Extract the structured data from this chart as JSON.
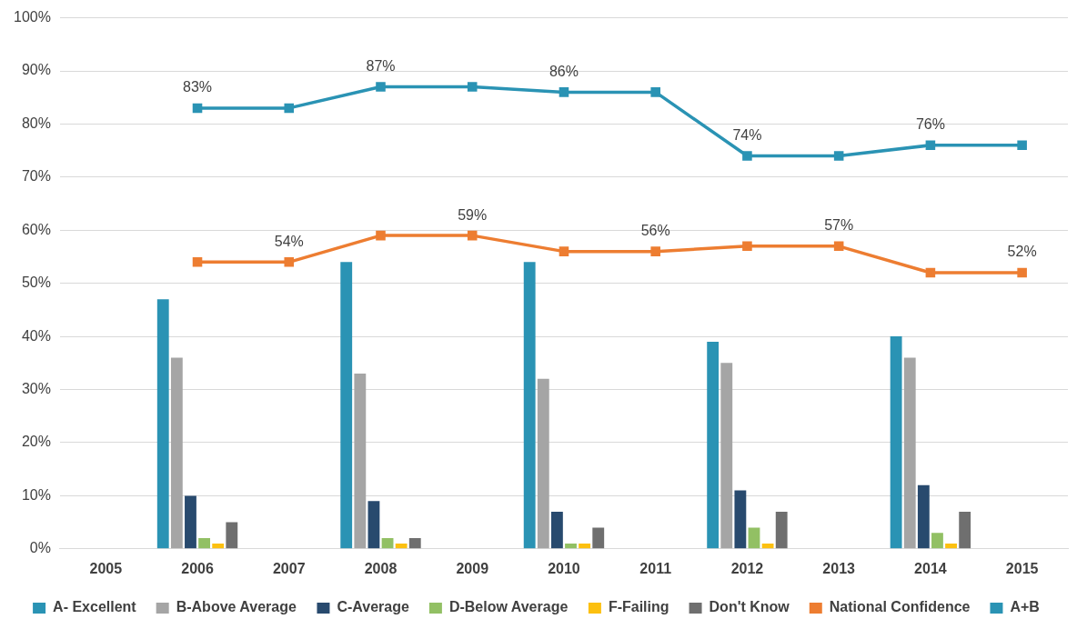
{
  "chart_data": {
    "type": "bar",
    "categories": [
      "2005",
      "2006",
      "2007",
      "2008",
      "2009",
      "2010",
      "2011",
      "2012",
      "2013",
      "2014",
      "2015"
    ],
    "series": [
      {
        "name": "A- Excellent",
        "color": "#2a93b4",
        "values": [
          null,
          47,
          null,
          54,
          null,
          54,
          null,
          39,
          null,
          40,
          null
        ]
      },
      {
        "name": "B-Above Average",
        "color": "#a5a5a5",
        "values": [
          null,
          36,
          null,
          33,
          null,
          32,
          null,
          35,
          null,
          36,
          null
        ]
      },
      {
        "name": "C-Average",
        "color": "#284a6e",
        "values": [
          null,
          10,
          null,
          9,
          null,
          7,
          null,
          11,
          null,
          12,
          null
        ]
      },
      {
        "name": "D-Below Average",
        "color": "#92c064",
        "values": [
          null,
          2,
          null,
          2,
          null,
          1,
          null,
          4,
          null,
          3,
          null
        ]
      },
      {
        "name": "F-Failing",
        "color": "#fcc010",
        "values": [
          null,
          1,
          null,
          1,
          null,
          1,
          null,
          1,
          null,
          1,
          null
        ]
      },
      {
        "name": "Don't Know",
        "color": "#6f6f6f",
        "values": [
          null,
          5,
          null,
          2,
          null,
          4,
          null,
          7,
          null,
          7,
          null
        ]
      },
      {
        "name": "National Confidence",
        "type": "line",
        "color": "#ed7d31",
        "values": [
          null,
          54,
          54,
          59,
          59,
          56,
          56,
          57,
          57,
          52,
          52
        ],
        "value_labels": [
          null,
          null,
          "54%",
          null,
          "59%",
          null,
          "56%",
          null,
          "57%",
          null,
          "52%"
        ]
      },
      {
        "name": "A+B",
        "type": "line",
        "color": "#2a93b4",
        "values": [
          null,
          83,
          83,
          87,
          87,
          86,
          86,
          74,
          74,
          76,
          76
        ],
        "value_labels": [
          null,
          "83%",
          null,
          "87%",
          null,
          "86%",
          null,
          "74%",
          null,
          "76%",
          null
        ]
      }
    ],
    "ylim": [
      0,
      100
    ],
    "yticks": [
      {
        "value": 0,
        "label": "0%"
      },
      {
        "value": 10,
        "label": "10%"
      },
      {
        "value": 20,
        "label": "20%"
      },
      {
        "value": 30,
        "label": "30%"
      },
      {
        "value": 40,
        "label": "40%"
      },
      {
        "value": 50,
        "label": "50%"
      },
      {
        "value": 60,
        "label": "60%"
      },
      {
        "value": 70,
        "label": "70%"
      },
      {
        "value": 80,
        "label": "80%"
      },
      {
        "value": 90,
        "label": "90%"
      },
      {
        "value": 100,
        "label": "100%"
      }
    ],
    "grid": "y",
    "legend": "bottom",
    "marker": "square",
    "line_style": "solid"
  }
}
